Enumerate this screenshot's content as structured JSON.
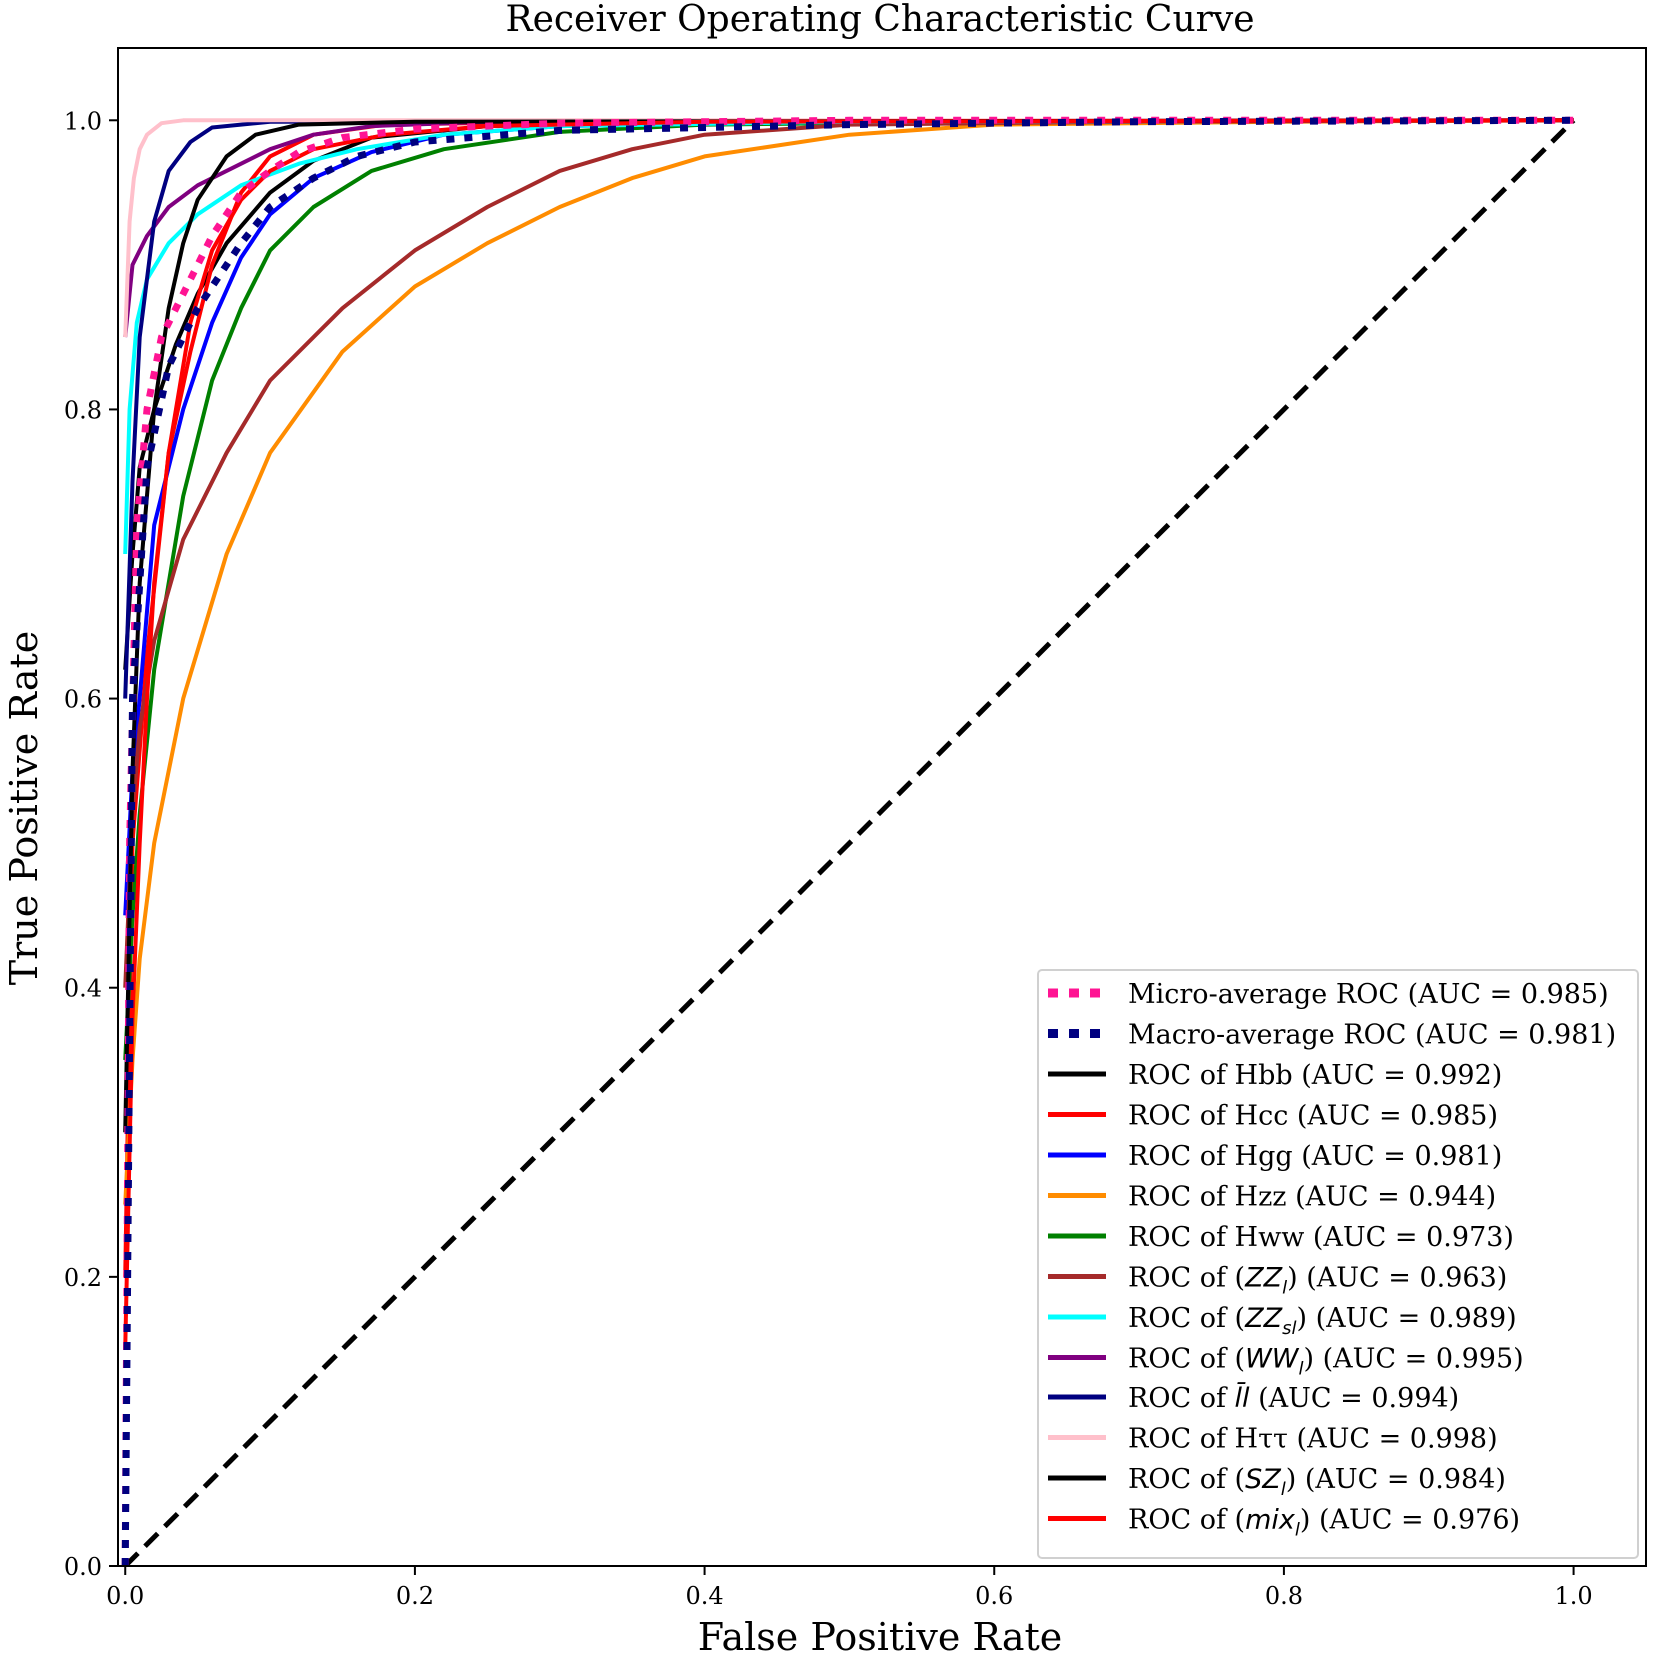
{
  "chart_data": {
    "type": "line",
    "title": "Receiver Operating Characteristic Curve",
    "xlabel": "False Positive Rate",
    "ylabel": "True Positive Rate",
    "xlim": [
      -0.005,
      1.05
    ],
    "ylim": [
      0.0,
      1.05
    ],
    "xticks": [
      "0.0",
      "0.2",
      "0.4",
      "0.6",
      "0.8",
      "1.0"
    ],
    "yticks": [
      "0.0",
      "0.2",
      "0.4",
      "0.6",
      "0.8",
      "1.0"
    ],
    "grid": false,
    "legend_position": "lower-right",
    "diagonal": {
      "color": "#000000",
      "style": "dashed",
      "points": [
        [
          0,
          0
        ],
        [
          1,
          1
        ]
      ]
    },
    "series": [
      {
        "name": "Micro-average ROC",
        "auc": "0.985",
        "color": "#ff1493",
        "style": "dotted",
        "points": [
          [
            0,
            0
          ],
          [
            0.003,
            0.5
          ],
          [
            0.008,
            0.72
          ],
          [
            0.015,
            0.8
          ],
          [
            0.025,
            0.85
          ],
          [
            0.04,
            0.88
          ],
          [
            0.06,
            0.92
          ],
          [
            0.08,
            0.95
          ],
          [
            0.1,
            0.965
          ],
          [
            0.12,
            0.978
          ],
          [
            0.15,
            0.988
          ],
          [
            0.2,
            0.994
          ],
          [
            0.3,
            0.998
          ],
          [
            0.5,
            1.0
          ],
          [
            1.0,
            1.0
          ]
        ]
      },
      {
        "name": "Macro-average ROC",
        "auc": "0.981",
        "color": "#000080",
        "style": "dotted",
        "points": [
          [
            0,
            0
          ],
          [
            0.005,
            0.6
          ],
          [
            0.015,
            0.76
          ],
          [
            0.03,
            0.83
          ],
          [
            0.05,
            0.87
          ],
          [
            0.08,
            0.915
          ],
          [
            0.1,
            0.94
          ],
          [
            0.13,
            0.96
          ],
          [
            0.16,
            0.975
          ],
          [
            0.2,
            0.985
          ],
          [
            0.3,
            0.993
          ],
          [
            0.5,
            0.997
          ],
          [
            0.7,
            0.999
          ],
          [
            1.0,
            1.0
          ]
        ]
      },
      {
        "name": "ROC of Hbb",
        "auc": "0.992",
        "color": "#000000",
        "style": "solid",
        "points": [
          [
            0,
            0.62
          ],
          [
            0.005,
            0.7
          ],
          [
            0.01,
            0.76
          ],
          [
            0.02,
            0.8
          ],
          [
            0.035,
            0.845
          ],
          [
            0.05,
            0.88
          ],
          [
            0.07,
            0.915
          ],
          [
            0.1,
            0.95
          ],
          [
            0.13,
            0.972
          ],
          [
            0.17,
            0.988
          ],
          [
            0.25,
            0.996
          ],
          [
            0.4,
            0.999
          ],
          [
            1.0,
            1.0
          ]
        ]
      },
      {
        "name": "ROC of Hcc",
        "auc": "0.985",
        "color": "#ff0000",
        "style": "solid",
        "points": [
          [
            0,
            0.2
          ],
          [
            0.005,
            0.5
          ],
          [
            0.015,
            0.63
          ],
          [
            0.03,
            0.77
          ],
          [
            0.045,
            0.84
          ],
          [
            0.06,
            0.9
          ],
          [
            0.08,
            0.95
          ],
          [
            0.1,
            0.975
          ],
          [
            0.13,
            0.99
          ],
          [
            0.18,
            0.997
          ],
          [
            0.3,
            0.999
          ],
          [
            1.0,
            1.0
          ]
        ]
      },
      {
        "name": "ROC of Hgg",
        "auc": "0.981",
        "color": "#0000ff",
        "style": "solid",
        "points": [
          [
            0,
            0.45
          ],
          [
            0.005,
            0.55
          ],
          [
            0.01,
            0.6
          ],
          [
            0.02,
            0.72
          ],
          [
            0.04,
            0.8
          ],
          [
            0.06,
            0.86
          ],
          [
            0.08,
            0.905
          ],
          [
            0.1,
            0.935
          ],
          [
            0.13,
            0.96
          ],
          [
            0.17,
            0.978
          ],
          [
            0.22,
            0.99
          ],
          [
            0.3,
            0.996
          ],
          [
            0.5,
            0.999
          ],
          [
            1.0,
            1.0
          ]
        ]
      },
      {
        "name": "ROC of Hzz",
        "auc": "0.944",
        "color": "#ff8c00",
        "style": "solid",
        "points": [
          [
            0,
            0.25
          ],
          [
            0.005,
            0.35
          ],
          [
            0.01,
            0.42
          ],
          [
            0.02,
            0.5
          ],
          [
            0.04,
            0.6
          ],
          [
            0.07,
            0.7
          ],
          [
            0.1,
            0.77
          ],
          [
            0.15,
            0.84
          ],
          [
            0.2,
            0.885
          ],
          [
            0.25,
            0.915
          ],
          [
            0.3,
            0.94
          ],
          [
            0.35,
            0.96
          ],
          [
            0.4,
            0.975
          ],
          [
            0.5,
            0.99
          ],
          [
            0.6,
            0.997
          ],
          [
            0.8,
            0.999
          ],
          [
            1.0,
            1.0
          ]
        ]
      },
      {
        "name": "ROC of Hww",
        "auc": "0.973",
        "color": "#008000",
        "style": "solid",
        "points": [
          [
            0,
            0.35
          ],
          [
            0.005,
            0.45
          ],
          [
            0.01,
            0.52
          ],
          [
            0.02,
            0.62
          ],
          [
            0.04,
            0.74
          ],
          [
            0.06,
            0.82
          ],
          [
            0.08,
            0.87
          ],
          [
            0.1,
            0.91
          ],
          [
            0.13,
            0.94
          ],
          [
            0.17,
            0.965
          ],
          [
            0.22,
            0.98
          ],
          [
            0.3,
            0.992
          ],
          [
            0.4,
            0.997
          ],
          [
            0.6,
            0.999
          ],
          [
            1.0,
            1.0
          ]
        ]
      },
      {
        "name": "ROC of (ZZ)_l",
        "auc": "0.963",
        "color": "#a52a2a",
        "style": "solid",
        "points": [
          [
            0,
            0.4
          ],
          [
            0.005,
            0.52
          ],
          [
            0.01,
            0.58
          ],
          [
            0.02,
            0.64
          ],
          [
            0.04,
            0.71
          ],
          [
            0.07,
            0.77
          ],
          [
            0.1,
            0.82
          ],
          [
            0.15,
            0.87
          ],
          [
            0.2,
            0.91
          ],
          [
            0.25,
            0.94
          ],
          [
            0.3,
            0.965
          ],
          [
            0.35,
            0.98
          ],
          [
            0.4,
            0.99
          ],
          [
            0.5,
            0.997
          ],
          [
            0.7,
            0.999
          ],
          [
            1.0,
            1.0
          ]
        ]
      },
      {
        "name": "ROC of (ZZ)_sl",
        "auc": "0.989",
        "color": "#00ffff",
        "style": "solid",
        "points": [
          [
            0,
            0.7
          ],
          [
            0.003,
            0.8
          ],
          [
            0.008,
            0.86
          ],
          [
            0.015,
            0.89
          ],
          [
            0.03,
            0.915
          ],
          [
            0.05,
            0.935
          ],
          [
            0.08,
            0.955
          ],
          [
            0.12,
            0.97
          ],
          [
            0.16,
            0.98
          ],
          [
            0.22,
            0.99
          ],
          [
            0.3,
            0.996
          ],
          [
            0.5,
            0.999
          ],
          [
            1.0,
            1.0
          ]
        ]
      },
      {
        "name": "ROC of (WW)_l",
        "auc": "0.995",
        "color": "#800080",
        "style": "solid",
        "points": [
          [
            0,
            0.85
          ],
          [
            0.005,
            0.9
          ],
          [
            0.015,
            0.92
          ],
          [
            0.03,
            0.94
          ],
          [
            0.05,
            0.955
          ],
          [
            0.08,
            0.97
          ],
          [
            0.1,
            0.98
          ],
          [
            0.13,
            0.99
          ],
          [
            0.17,
            0.996
          ],
          [
            0.25,
            0.999
          ],
          [
            1.0,
            1.0
          ]
        ]
      },
      {
        "name": "ROC of ll̄",
        "auc": "0.994",
        "color": "#000080",
        "style": "solid",
        "points": [
          [
            0,
            0.6
          ],
          [
            0.005,
            0.75
          ],
          [
            0.01,
            0.85
          ],
          [
            0.02,
            0.93
          ],
          [
            0.03,
            0.965
          ],
          [
            0.045,
            0.985
          ],
          [
            0.06,
            0.995
          ],
          [
            0.1,
            0.999
          ],
          [
            1.0,
            1.0
          ]
        ]
      },
      {
        "name": "ROC of Hττ",
        "auc": "0.998",
        "color": "#ffc0cb",
        "style": "solid",
        "points": [
          [
            0,
            0.85
          ],
          [
            0.003,
            0.93
          ],
          [
            0.006,
            0.96
          ],
          [
            0.01,
            0.98
          ],
          [
            0.015,
            0.99
          ],
          [
            0.025,
            0.998
          ],
          [
            0.04,
            1.0
          ],
          [
            1.0,
            1.0
          ]
        ]
      },
      {
        "name": "ROC of (SZ)_l",
        "auc": "0.984",
        "color": "#000000",
        "style": "solid",
        "points": [
          [
            0,
            0.3
          ],
          [
            0.005,
            0.55
          ],
          [
            0.01,
            0.68
          ],
          [
            0.02,
            0.8
          ],
          [
            0.03,
            0.87
          ],
          [
            0.04,
            0.915
          ],
          [
            0.05,
            0.945
          ],
          [
            0.07,
            0.975
          ],
          [
            0.09,
            0.99
          ],
          [
            0.12,
            0.997
          ],
          [
            0.2,
            0.999
          ],
          [
            1.0,
            1.0
          ]
        ]
      },
      {
        "name": "ROC of (mix)_l",
        "auc": "0.976",
        "color": "#ff0000",
        "style": "solid",
        "points": [
          [
            0,
            0.15
          ],
          [
            0.005,
            0.38
          ],
          [
            0.01,
            0.5
          ],
          [
            0.015,
            0.6
          ],
          [
            0.02,
            0.68
          ],
          [
            0.03,
            0.77
          ],
          [
            0.045,
            0.86
          ],
          [
            0.06,
            0.91
          ],
          [
            0.08,
            0.945
          ],
          [
            0.1,
            0.965
          ],
          [
            0.13,
            0.98
          ],
          [
            0.18,
            0.99
          ],
          [
            0.25,
            0.996
          ],
          [
            0.4,
            0.999
          ],
          [
            1.0,
            1.0
          ]
        ]
      }
    ],
    "legend": [
      {
        "prefix": "Micro-average ROC",
        "math": "",
        "sub": "",
        "suffix": " (AUC = 0.985)"
      },
      {
        "prefix": "Macro-average ROC",
        "math": "",
        "sub": "",
        "suffix": " (AUC = 0.981)"
      },
      {
        "prefix": "ROC of Hbb",
        "math": "",
        "sub": "",
        "suffix": " (AUC = 0.992)"
      },
      {
        "prefix": "ROC of Hcc",
        "math": "",
        "sub": "",
        "suffix": " (AUC = 0.985)"
      },
      {
        "prefix": "ROC of Hgg",
        "math": "",
        "sub": "",
        "suffix": " (AUC = 0.981)"
      },
      {
        "prefix": "ROC of Hzz",
        "math": "",
        "sub": "",
        "suffix": " (AUC = 0.944)"
      },
      {
        "prefix": "ROC of Hww",
        "math": "",
        "sub": "",
        "suffix": " (AUC = 0.973)"
      },
      {
        "prefix": "ROC of (",
        "math": "ZZ",
        "sub": "l",
        "suffix": " (AUC = 0.963)"
      },
      {
        "prefix": "ROC of (",
        "math": "ZZ",
        "sub": "sl",
        "suffix": " (AUC = 0.989)"
      },
      {
        "prefix": "ROC of (",
        "math": "WW",
        "sub": "l",
        "suffix": " (AUC = 0.995)"
      },
      {
        "prefix": "ROC of ",
        "math": "l̄l",
        "sub": "",
        "suffix": " (AUC = 0.994)"
      },
      {
        "prefix": "ROC of Hττ",
        "math": "",
        "sub": "",
        "suffix": " (AUC = 0.998)"
      },
      {
        "prefix": "ROC of (",
        "math": "SZ",
        "sub": "l",
        "suffix": " (AUC = 0.984)"
      },
      {
        "prefix": "ROC of (",
        "math": "mix",
        "sub": "l",
        "suffix": " (AUC = 0.976)"
      }
    ]
  }
}
